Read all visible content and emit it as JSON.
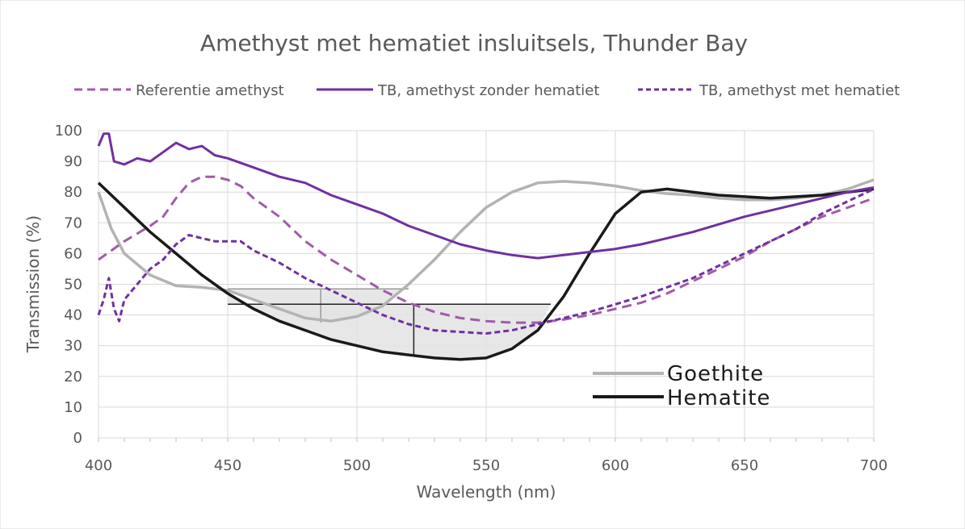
{
  "chart_data": {
    "type": "line",
    "title": "Amethyst met hematiet insluitsels, Thunder Bay",
    "xlabel": "Wavelength (nm)",
    "ylabel": "Transmission (%)",
    "xlim": [
      400,
      700
    ],
    "ylim": [
      0,
      100
    ],
    "xticks": [
      "400",
      "450",
      "500",
      "550",
      "600",
      "650",
      "700"
    ],
    "yticks": [
      "0",
      "10",
      "20",
      "30",
      "40",
      "50",
      "60",
      "70",
      "80",
      "90",
      "100"
    ],
    "grid": true,
    "legend_position": "top",
    "series": [
      {
        "name": "Referentie amethyst",
        "color": "#a05ca8",
        "style": "dashed",
        "points": [
          [
            400,
            58
          ],
          [
            405,
            61
          ],
          [
            410,
            64
          ],
          [
            420,
            69
          ],
          [
            425,
            72
          ],
          [
            430,
            78
          ],
          [
            435,
            83
          ],
          [
            440,
            85
          ],
          [
            445,
            85
          ],
          [
            450,
            84
          ],
          [
            455,
            82
          ],
          [
            460,
            78
          ],
          [
            470,
            72
          ],
          [
            480,
            64
          ],
          [
            490,
            58
          ],
          [
            500,
            53
          ],
          [
            510,
            48
          ],
          [
            520,
            44
          ],
          [
            530,
            41
          ],
          [
            540,
            39
          ],
          [
            550,
            38
          ],
          [
            560,
            37.5
          ],
          [
            570,
            37.5
          ],
          [
            580,
            38.5
          ],
          [
            590,
            40
          ],
          [
            600,
            42
          ],
          [
            610,
            44
          ],
          [
            620,
            47
          ],
          [
            630,
            51
          ],
          [
            640,
            55
          ],
          [
            650,
            59
          ],
          [
            660,
            64
          ],
          [
            670,
            68
          ],
          [
            680,
            72
          ],
          [
            690,
            75
          ],
          [
            700,
            78
          ]
        ]
      },
      {
        "name": "TB, amethyst zonder hematiet",
        "color": "#7030a0",
        "style": "solid",
        "points": [
          [
            400,
            95
          ],
          [
            402,
            99
          ],
          [
            404,
            99
          ],
          [
            406,
            90
          ],
          [
            410,
            89
          ],
          [
            415,
            91
          ],
          [
            420,
            90
          ],
          [
            425,
            93
          ],
          [
            430,
            96
          ],
          [
            435,
            94
          ],
          [
            440,
            95
          ],
          [
            445,
            92
          ],
          [
            450,
            91
          ],
          [
            460,
            88
          ],
          [
            470,
            85
          ],
          [
            480,
            83
          ],
          [
            490,
            79
          ],
          [
            500,
            76
          ],
          [
            510,
            73
          ],
          [
            520,
            69
          ],
          [
            530,
            66
          ],
          [
            540,
            63
          ],
          [
            550,
            61
          ],
          [
            560,
            59.5
          ],
          [
            570,
            58.5
          ],
          [
            580,
            59.5
          ],
          [
            590,
            60.5
          ],
          [
            600,
            61.5
          ],
          [
            610,
            63
          ],
          [
            620,
            65
          ],
          [
            630,
            67
          ],
          [
            640,
            69.5
          ],
          [
            650,
            72
          ],
          [
            660,
            74
          ],
          [
            670,
            76
          ],
          [
            680,
            78
          ],
          [
            690,
            80
          ],
          [
            700,
            81.5
          ]
        ]
      },
      {
        "name": "TB, amethyst met hematiet",
        "color": "#7030a0",
        "style": "dashed",
        "points": [
          [
            400,
            40
          ],
          [
            402,
            45
          ],
          [
            404,
            52
          ],
          [
            406,
            42
          ],
          [
            408,
            38
          ],
          [
            410,
            45
          ],
          [
            415,
            50
          ],
          [
            420,
            55
          ],
          [
            425,
            58
          ],
          [
            430,
            63
          ],
          [
            435,
            66
          ],
          [
            440,
            65
          ],
          [
            445,
            64
          ],
          [
            450,
            64
          ],
          [
            455,
            64
          ],
          [
            460,
            61
          ],
          [
            470,
            57
          ],
          [
            480,
            52
          ],
          [
            490,
            48
          ],
          [
            500,
            44
          ],
          [
            510,
            40
          ],
          [
            520,
            37
          ],
          [
            530,
            35
          ],
          [
            540,
            34.5
          ],
          [
            550,
            34
          ],
          [
            560,
            35
          ],
          [
            570,
            37
          ],
          [
            580,
            39
          ],
          [
            590,
            41
          ],
          [
            600,
            43.5
          ],
          [
            610,
            46
          ],
          [
            620,
            49
          ],
          [
            630,
            52
          ],
          [
            640,
            56
          ],
          [
            650,
            60
          ],
          [
            660,
            64
          ],
          [
            670,
            68
          ],
          [
            680,
            73
          ],
          [
            690,
            77
          ],
          [
            700,
            81
          ]
        ]
      },
      {
        "name": "Goethite",
        "color": "#b3b3b3",
        "style": "solid",
        "points": [
          [
            400,
            80
          ],
          [
            405,
            68
          ],
          [
            410,
            60
          ],
          [
            420,
            53
          ],
          [
            430,
            49.5
          ],
          [
            440,
            49
          ],
          [
            450,
            48
          ],
          [
            460,
            45
          ],
          [
            470,
            42
          ],
          [
            480,
            39
          ],
          [
            490,
            38
          ],
          [
            500,
            39.5
          ],
          [
            510,
            43
          ],
          [
            520,
            50
          ],
          [
            530,
            58
          ],
          [
            540,
            67
          ],
          [
            550,
            75
          ],
          [
            560,
            80
          ],
          [
            570,
            83
          ],
          [
            580,
            83.5
          ],
          [
            590,
            83
          ],
          [
            600,
            82
          ],
          [
            610,
            80.5
          ],
          [
            620,
            79.5
          ],
          [
            630,
            79
          ],
          [
            640,
            78
          ],
          [
            650,
            77.5
          ],
          [
            660,
            77.5
          ],
          [
            670,
            78
          ],
          [
            680,
            79
          ],
          [
            690,
            81
          ],
          [
            700,
            84
          ]
        ]
      },
      {
        "name": "Hematite",
        "color": "#1a1a1a",
        "style": "solid",
        "points": [
          [
            400,
            83
          ],
          [
            410,
            75
          ],
          [
            420,
            67
          ],
          [
            430,
            60
          ],
          [
            440,
            53
          ],
          [
            450,
            47
          ],
          [
            460,
            42
          ],
          [
            470,
            38
          ],
          [
            480,
            35
          ],
          [
            490,
            32
          ],
          [
            500,
            30
          ],
          [
            510,
            28
          ],
          [
            520,
            27
          ],
          [
            530,
            26
          ],
          [
            540,
            25.5
          ],
          [
            550,
            26
          ],
          [
            560,
            29
          ],
          [
            570,
            35
          ],
          [
            580,
            46
          ],
          [
            590,
            60
          ],
          [
            600,
            73
          ],
          [
            610,
            80
          ],
          [
            620,
            81
          ],
          [
            630,
            80
          ],
          [
            640,
            79
          ],
          [
            650,
            78.5
          ],
          [
            660,
            78
          ],
          [
            670,
            78.5
          ],
          [
            680,
            79
          ],
          [
            690,
            80
          ],
          [
            700,
            81
          ]
        ]
      }
    ],
    "annotations": {
      "inset_legend": [
        "Goethite",
        "Hematite"
      ]
    }
  }
}
